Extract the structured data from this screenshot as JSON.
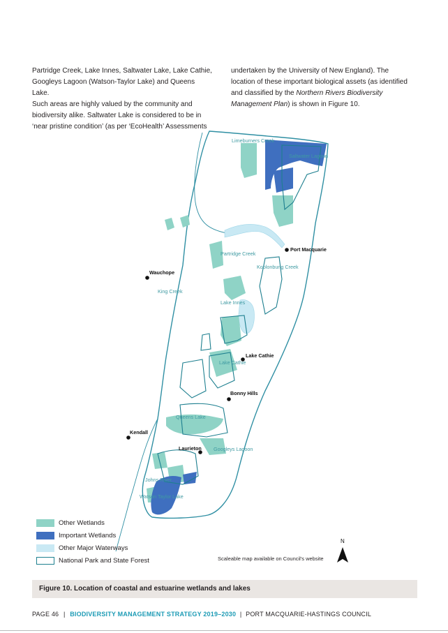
{
  "text": {
    "left": [
      "Partridge Creek, Lake Innes, Saltwater Lake, Lake Cathie,",
      "Googleys Lagoon (Watson-Taylor Lake) and Queens Lake.",
      "Such areas are highly valued by the community and",
      "biodiversity alike. Saltwater Lake is considered to be in",
      "‘near pristine condition’ (as per ‘EcoHealth’ Assessments"
    ],
    "right_line1": "undertaken by the University of New England). The",
    "right_line2": "location of these important biological assets (as identified",
    "right_line3_pre": "and classified by the ",
    "right_line3_em": "Northern Rivers Biodiversity",
    "right_line4_em": "Management Plan",
    "right_line4_post": ") is shown in Figure 10."
  },
  "map": {
    "colors": {
      "other_wetlands": "#8fd3c6",
      "important_wetlands": "#3f6fbf",
      "other_waterways": "#c9e9f4",
      "park_outline": "#1d7f8f",
      "boundary": "#2f8fa3"
    },
    "water_labels": {
      "limeburners": "Limeburners Creek",
      "saltwater": "Saltwater Lagoon",
      "partridge": "Partridge Creek",
      "koolonbung": "Koolonbung Creek",
      "king": "King Creek",
      "innes": "Lake Innes",
      "lake_cathie": "Lake Cathie",
      "queens": "Queens Lake",
      "googleys": "Googleys Lagoon",
      "johns": "Johns River",
      "watson": "Watson Taylor Lake"
    },
    "towns": {
      "port_macquarie": "Port Macquarie",
      "wauchope": "Wauchope",
      "lake_cathie": "Lake Cathie",
      "bonny_hills": "Bonny Hills",
      "kendall": "Kendall",
      "laurieton": "Laurieton"
    },
    "north": "N"
  },
  "legend": [
    "Other Wetlands",
    "Important Wetlands",
    "Other Major Waterways",
    "National Park and State Forest"
  ],
  "map_note": "Scaleable map available on Council's website",
  "caption": "Figure 10. Location of coastal and estuarine wetlands and lakes",
  "footer": {
    "page": "PAGE 46",
    "sep1": "|",
    "title": "BIODIVERSITY MANAGEMENT STRATEGY 2019–2030",
    "sep2": "|",
    "council": "PORT MACQUARIE-HASTINGS COUNCIL"
  }
}
